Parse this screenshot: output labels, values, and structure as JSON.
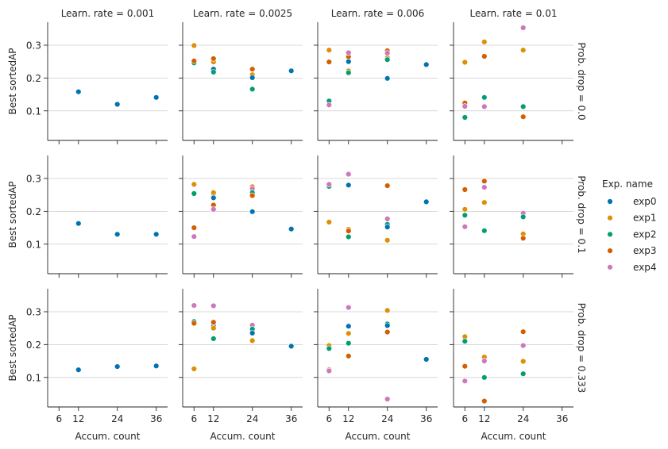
{
  "chart_data": {
    "type": "scatter",
    "col_titles": [
      "Learn. rate = 0.001",
      "Learn. rate = 0.0025",
      "Learn. rate = 0.006",
      "Learn. rate = 0.01"
    ],
    "row_titles": [
      "Prob. drop = 0.0",
      "Prob. drop = 0.1",
      "Prob. drop = 0.333"
    ],
    "xlabel": "Accum. count",
    "ylabel": "Best sortedAP",
    "x_ticks": [
      6,
      12,
      24,
      36
    ],
    "x_tick_labels": [
      "6",
      "12",
      "24",
      "36"
    ],
    "y_ticks": [
      0.1,
      0.2,
      0.3
    ],
    "y_tick_labels": [
      "0.1",
      "0.2",
      "0.3"
    ],
    "ylim": [
      0.01,
      0.37
    ],
    "grid": "horizontal",
    "legend": {
      "title": "Exp. name",
      "placement": "right",
      "entries": [
        {
          "name": "exp0",
          "color": "#0173b2"
        },
        {
          "name": "exp1",
          "color": "#de8f05"
        },
        {
          "name": "exp2",
          "color": "#029e73"
        },
        {
          "name": "exp3",
          "color": "#d55e00"
        },
        {
          "name": "exp4",
          "color": "#cc78bc"
        }
      ]
    },
    "panels": [
      {
        "row": 0,
        "col": 0,
        "points": [
          {
            "series": "exp0",
            "x": 12,
            "y": 0.158
          },
          {
            "series": "exp0",
            "x": 24,
            "y": 0.12
          },
          {
            "series": "exp0",
            "x": 36,
            "y": 0.141
          }
        ]
      },
      {
        "row": 0,
        "col": 1,
        "points": [
          {
            "series": "exp4",
            "x": 6,
            "y": 0.249
          },
          {
            "series": "exp1",
            "x": 6,
            "y": 0.299
          },
          {
            "series": "exp2",
            "x": 6,
            "y": 0.246
          },
          {
            "series": "exp3",
            "x": 6,
            "y": 0.252
          },
          {
            "series": "exp4",
            "x": 12,
            "y": 0.256
          },
          {
            "series": "exp0",
            "x": 12,
            "y": 0.227
          },
          {
            "series": "exp1",
            "x": 12,
            "y": 0.249
          },
          {
            "series": "exp2",
            "x": 12,
            "y": 0.218
          },
          {
            "series": "exp3",
            "x": 12,
            "y": 0.259
          },
          {
            "series": "exp4",
            "x": 24,
            "y": 0.228
          },
          {
            "series": "exp1",
            "x": 24,
            "y": 0.21
          },
          {
            "series": "exp3",
            "x": 24,
            "y": 0.227
          },
          {
            "series": "exp0",
            "x": 24,
            "y": 0.201
          },
          {
            "series": "exp2",
            "x": 24,
            "y": 0.166
          },
          {
            "series": "exp0",
            "x": 36,
            "y": 0.222
          }
        ]
      },
      {
        "row": 0,
        "col": 2,
        "points": [
          {
            "series": "exp2",
            "x": 6,
            "y": 0.13
          },
          {
            "series": "exp1",
            "x": 6,
            "y": 0.285
          },
          {
            "series": "exp3",
            "x": 6,
            "y": 0.249
          },
          {
            "series": "exp4",
            "x": 6,
            "y": 0.118
          },
          {
            "series": "exp1",
            "x": 12,
            "y": 0.222
          },
          {
            "series": "exp3",
            "x": 12,
            "y": 0.265
          },
          {
            "series": "exp4",
            "x": 12,
            "y": 0.277
          },
          {
            "series": "exp0",
            "x": 12,
            "y": 0.25
          },
          {
            "series": "exp2",
            "x": 12,
            "y": 0.216
          },
          {
            "series": "exp3",
            "x": 24,
            "y": 0.283
          },
          {
            "series": "exp1",
            "x": 24,
            "y": 0.262
          },
          {
            "series": "exp4",
            "x": 24,
            "y": 0.276
          },
          {
            "series": "exp2",
            "x": 24,
            "y": 0.256
          },
          {
            "series": "exp0",
            "x": 24,
            "y": 0.199
          },
          {
            "series": "exp0",
            "x": 36,
            "y": 0.241
          }
        ]
      },
      {
        "row": 0,
        "col": 3,
        "points": [
          {
            "series": "exp3",
            "x": 6,
            "y": 0.124
          },
          {
            "series": "exp1",
            "x": 6,
            "y": 0.248
          },
          {
            "series": "exp4",
            "x": 6,
            "y": 0.114
          },
          {
            "series": "exp2",
            "x": 6,
            "y": 0.08
          },
          {
            "series": "exp1",
            "x": 12,
            "y": 0.31
          },
          {
            "series": "exp3",
            "x": 12,
            "y": 0.266
          },
          {
            "series": "exp2",
            "x": 12,
            "y": 0.141
          },
          {
            "series": "exp4",
            "x": 12,
            "y": 0.113
          },
          {
            "series": "exp4",
            "x": 24,
            "y": 0.353
          },
          {
            "series": "exp1",
            "x": 24,
            "y": 0.285
          },
          {
            "series": "exp2",
            "x": 24,
            "y": 0.113
          },
          {
            "series": "exp3",
            "x": 24,
            "y": 0.082
          }
        ]
      },
      {
        "row": 1,
        "col": 0,
        "points": [
          {
            "series": "exp0",
            "x": 12,
            "y": 0.163
          },
          {
            "series": "exp0",
            "x": 24,
            "y": 0.13
          },
          {
            "series": "exp0",
            "x": 36,
            "y": 0.13
          }
        ]
      },
      {
        "row": 1,
        "col": 1,
        "points": [
          {
            "series": "exp1",
            "x": 6,
            "y": 0.282
          },
          {
            "series": "exp2",
            "x": 6,
            "y": 0.254
          },
          {
            "series": "exp3",
            "x": 6,
            "y": 0.15
          },
          {
            "series": "exp4",
            "x": 6,
            "y": 0.123
          },
          {
            "series": "exp2",
            "x": 12,
            "y": 0.253
          },
          {
            "series": "exp1",
            "x": 12,
            "y": 0.257
          },
          {
            "series": "exp0",
            "x": 12,
            "y": 0.241
          },
          {
            "series": "exp3",
            "x": 12,
            "y": 0.219
          },
          {
            "series": "exp4",
            "x": 12,
            "y": 0.206
          },
          {
            "series": "exp1",
            "x": 24,
            "y": 0.275
          },
          {
            "series": "exp4",
            "x": 24,
            "y": 0.269
          },
          {
            "series": "exp2",
            "x": 24,
            "y": 0.257
          },
          {
            "series": "exp3",
            "x": 24,
            "y": 0.248
          },
          {
            "series": "exp0",
            "x": 24,
            "y": 0.199
          },
          {
            "series": "exp0",
            "x": 36,
            "y": 0.146
          }
        ]
      },
      {
        "row": 1,
        "col": 2,
        "points": [
          {
            "series": "exp3",
            "x": 6,
            "y": 0.28
          },
          {
            "series": "exp2",
            "x": 6,
            "y": 0.276
          },
          {
            "series": "exp4",
            "x": 6,
            "y": 0.282
          },
          {
            "series": "exp1",
            "x": 6,
            "y": 0.167
          },
          {
            "series": "exp4",
            "x": 12,
            "y": 0.313
          },
          {
            "series": "exp0",
            "x": 12,
            "y": 0.28
          },
          {
            "series": "exp1",
            "x": 12,
            "y": 0.145
          },
          {
            "series": "exp3",
            "x": 12,
            "y": 0.14
          },
          {
            "series": "exp2",
            "x": 12,
            "y": 0.122
          },
          {
            "series": "exp3",
            "x": 24,
            "y": 0.278
          },
          {
            "series": "exp4",
            "x": 24,
            "y": 0.177
          },
          {
            "series": "exp2",
            "x": 24,
            "y": 0.16
          },
          {
            "series": "exp0",
            "x": 24,
            "y": 0.152
          },
          {
            "series": "exp1",
            "x": 24,
            "y": 0.112
          },
          {
            "series": "exp0",
            "x": 36,
            "y": 0.229
          }
        ]
      },
      {
        "row": 1,
        "col": 3,
        "points": [
          {
            "series": "exp3",
            "x": 6,
            "y": 0.266
          },
          {
            "series": "exp1",
            "x": 6,
            "y": 0.206
          },
          {
            "series": "exp2",
            "x": 6,
            "y": 0.188
          },
          {
            "series": "exp4",
            "x": 6,
            "y": 0.153
          },
          {
            "series": "exp3",
            "x": 12,
            "y": 0.292
          },
          {
            "series": "exp4",
            "x": 12,
            "y": 0.273
          },
          {
            "series": "exp1",
            "x": 12,
            "y": 0.227
          },
          {
            "series": "exp2",
            "x": 12,
            "y": 0.141
          },
          {
            "series": "exp4",
            "x": 24,
            "y": 0.194
          },
          {
            "series": "exp2",
            "x": 24,
            "y": 0.183
          },
          {
            "series": "exp1",
            "x": 24,
            "y": 0.131
          },
          {
            "series": "exp3",
            "x": 24,
            "y": 0.118
          }
        ]
      },
      {
        "row": 2,
        "col": 0,
        "points": [
          {
            "series": "exp0",
            "x": 12,
            "y": 0.123
          },
          {
            "series": "exp0",
            "x": 24,
            "y": 0.133
          },
          {
            "series": "exp0",
            "x": 36,
            "y": 0.135
          }
        ]
      },
      {
        "row": 2,
        "col": 1,
        "points": [
          {
            "series": "exp2",
            "x": 6,
            "y": 0.27
          },
          {
            "series": "exp4",
            "x": 6,
            "y": 0.319
          },
          {
            "series": "exp3",
            "x": 6,
            "y": 0.265
          },
          {
            "series": "exp1",
            "x": 6,
            "y": 0.126
          },
          {
            "series": "exp4",
            "x": 12,
            "y": 0.318
          },
          {
            "series": "exp0",
            "x": 12,
            "y": 0.256
          },
          {
            "series": "exp3",
            "x": 12,
            "y": 0.268
          },
          {
            "series": "exp1",
            "x": 12,
            "y": 0.25
          },
          {
            "series": "exp2",
            "x": 12,
            "y": 0.218
          },
          {
            "series": "exp4",
            "x": 24,
            "y": 0.259
          },
          {
            "series": "exp2",
            "x": 24,
            "y": 0.247
          },
          {
            "series": "exp0",
            "x": 24,
            "y": 0.235
          },
          {
            "series": "exp3",
            "x": 24,
            "y": 0.212
          },
          {
            "series": "exp1",
            "x": 24,
            "y": 0.212
          },
          {
            "series": "exp0",
            "x": 36,
            "y": 0.195
          }
        ]
      },
      {
        "row": 2,
        "col": 2,
        "points": [
          {
            "series": "exp1",
            "x": 6,
            "y": 0.197
          },
          {
            "series": "exp2",
            "x": 6,
            "y": 0.188
          },
          {
            "series": "exp3",
            "x": 6,
            "y": 0.123
          },
          {
            "series": "exp4",
            "x": 6,
            "y": 0.12
          },
          {
            "series": "exp4",
            "x": 12,
            "y": 0.313
          },
          {
            "series": "exp0",
            "x": 12,
            "y": 0.256
          },
          {
            "series": "exp1",
            "x": 12,
            "y": 0.234
          },
          {
            "series": "exp2",
            "x": 12,
            "y": 0.204
          },
          {
            "series": "exp3",
            "x": 12,
            "y": 0.165
          },
          {
            "series": "exp1",
            "x": 24,
            "y": 0.304
          },
          {
            "series": "exp2",
            "x": 24,
            "y": 0.263
          },
          {
            "series": "exp0",
            "x": 24,
            "y": 0.258
          },
          {
            "series": "exp3",
            "x": 24,
            "y": 0.238
          },
          {
            "series": "exp4",
            "x": 24,
            "y": 0.034
          },
          {
            "series": "exp0",
            "x": 36,
            "y": 0.155
          }
        ]
      },
      {
        "row": 2,
        "col": 3,
        "points": [
          {
            "series": "exp1",
            "x": 6,
            "y": 0.224
          },
          {
            "series": "exp2",
            "x": 6,
            "y": 0.21
          },
          {
            "series": "exp3",
            "x": 6,
            "y": 0.134
          },
          {
            "series": "exp4",
            "x": 6,
            "y": 0.089
          },
          {
            "series": "exp1",
            "x": 12,
            "y": 0.162
          },
          {
            "series": "exp4",
            "x": 12,
            "y": 0.15
          },
          {
            "series": "exp2",
            "x": 12,
            "y": 0.1
          },
          {
            "series": "exp3",
            "x": 12,
            "y": 0.028
          },
          {
            "series": "exp3",
            "x": 24,
            "y": 0.239
          },
          {
            "series": "exp4",
            "x": 24,
            "y": 0.197
          },
          {
            "series": "exp1",
            "x": 24,
            "y": 0.149
          },
          {
            "series": "exp2",
            "x": 24,
            "y": 0.111
          }
        ]
      }
    ]
  }
}
